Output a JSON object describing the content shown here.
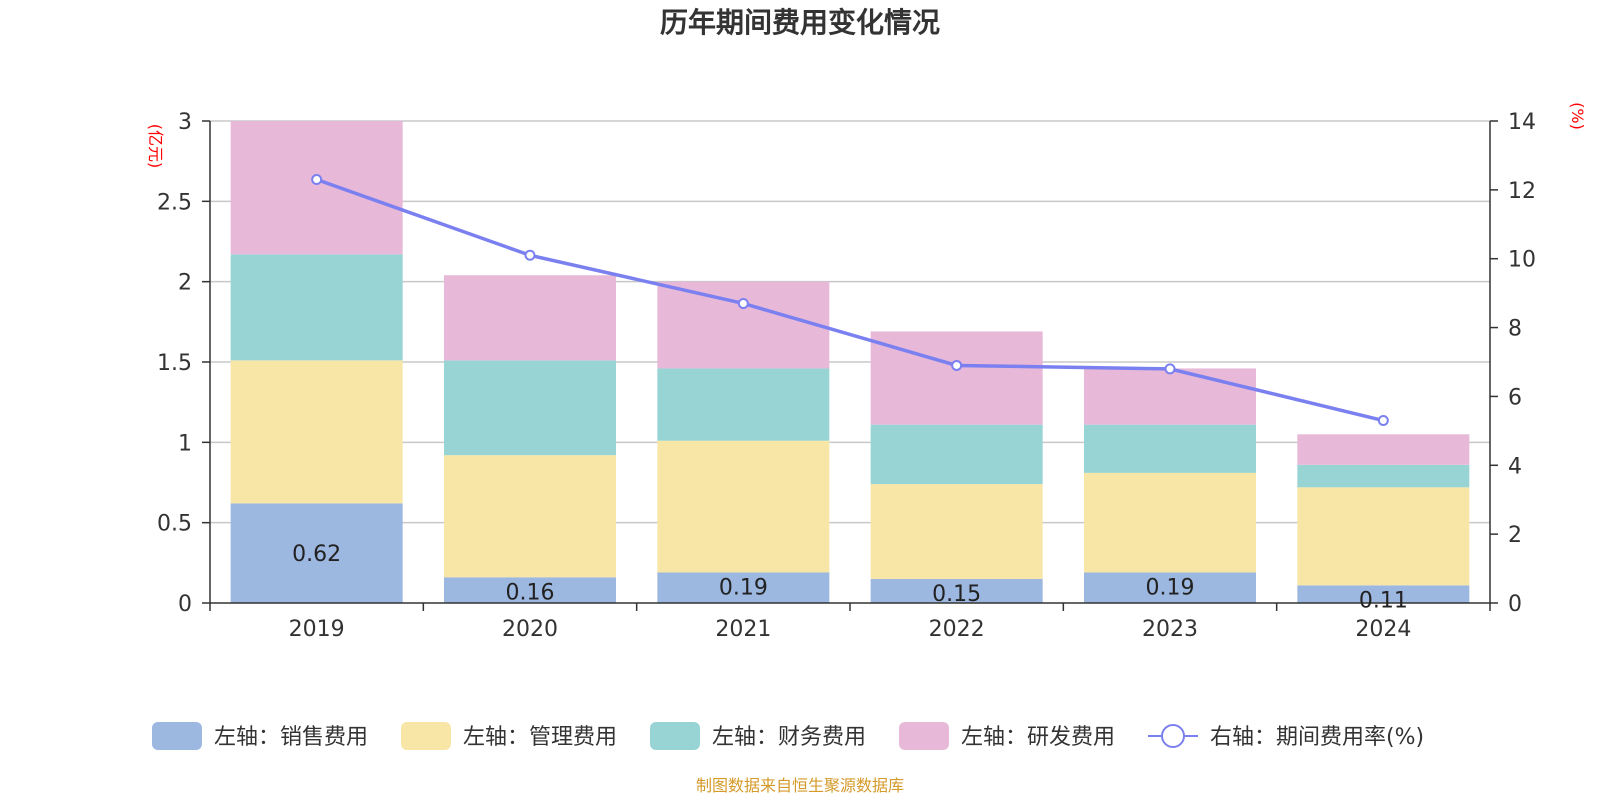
{
  "chart_data": {
    "type": "bar",
    "stacked": true,
    "title": "历年期间费用变化情况",
    "categories": [
      "2019",
      "2020",
      "2021",
      "2022",
      "2023",
      "2024"
    ],
    "y_left": {
      "unit": "(亿元)",
      "ylim": [
        0,
        3
      ],
      "ticks": [
        "0",
        "0.5",
        "1",
        "1.5",
        "2",
        "2.5",
        "3"
      ]
    },
    "y_right": {
      "unit": "(%)",
      "ylim": [
        0,
        14
      ],
      "ticks": [
        "0",
        "2",
        "4",
        "6",
        "8",
        "10",
        "12",
        "14"
      ]
    },
    "series": [
      {
        "name": "左轴：销售费用",
        "axis": "left",
        "type": "bar",
        "color": "#9cb7e0",
        "values": [
          0.62,
          0.16,
          0.19,
          0.15,
          0.19,
          0.11
        ],
        "labels": [
          "0.62",
          "0.16",
          "0.19",
          "0.15",
          "0.19",
          "0.11"
        ]
      },
      {
        "name": "左轴：管理费用",
        "axis": "left",
        "type": "bar",
        "color": "#f7e6a6",
        "values": [
          0.89,
          0.76,
          0.82,
          0.59,
          0.62,
          0.61
        ]
      },
      {
        "name": "左轴：财务费用",
        "axis": "left",
        "type": "bar",
        "color": "#98d4d4",
        "values": [
          0.66,
          0.59,
          0.45,
          0.37,
          0.3,
          0.14
        ]
      },
      {
        "name": "左轴：研发费用",
        "axis": "left",
        "type": "bar",
        "color": "#e8b8d9",
        "values": [
          0.83,
          0.53,
          0.54,
          0.58,
          0.35,
          0.19
        ]
      },
      {
        "name": "右轴：期间费用率(%)",
        "axis": "right",
        "type": "line",
        "color": "#7b80f0",
        "values": [
          12.3,
          10.1,
          8.7,
          6.9,
          6.8,
          5.3
        ]
      }
    ],
    "grid": true,
    "legend_position": "bottom"
  },
  "source": "制图数据来自恒生聚源数据库"
}
